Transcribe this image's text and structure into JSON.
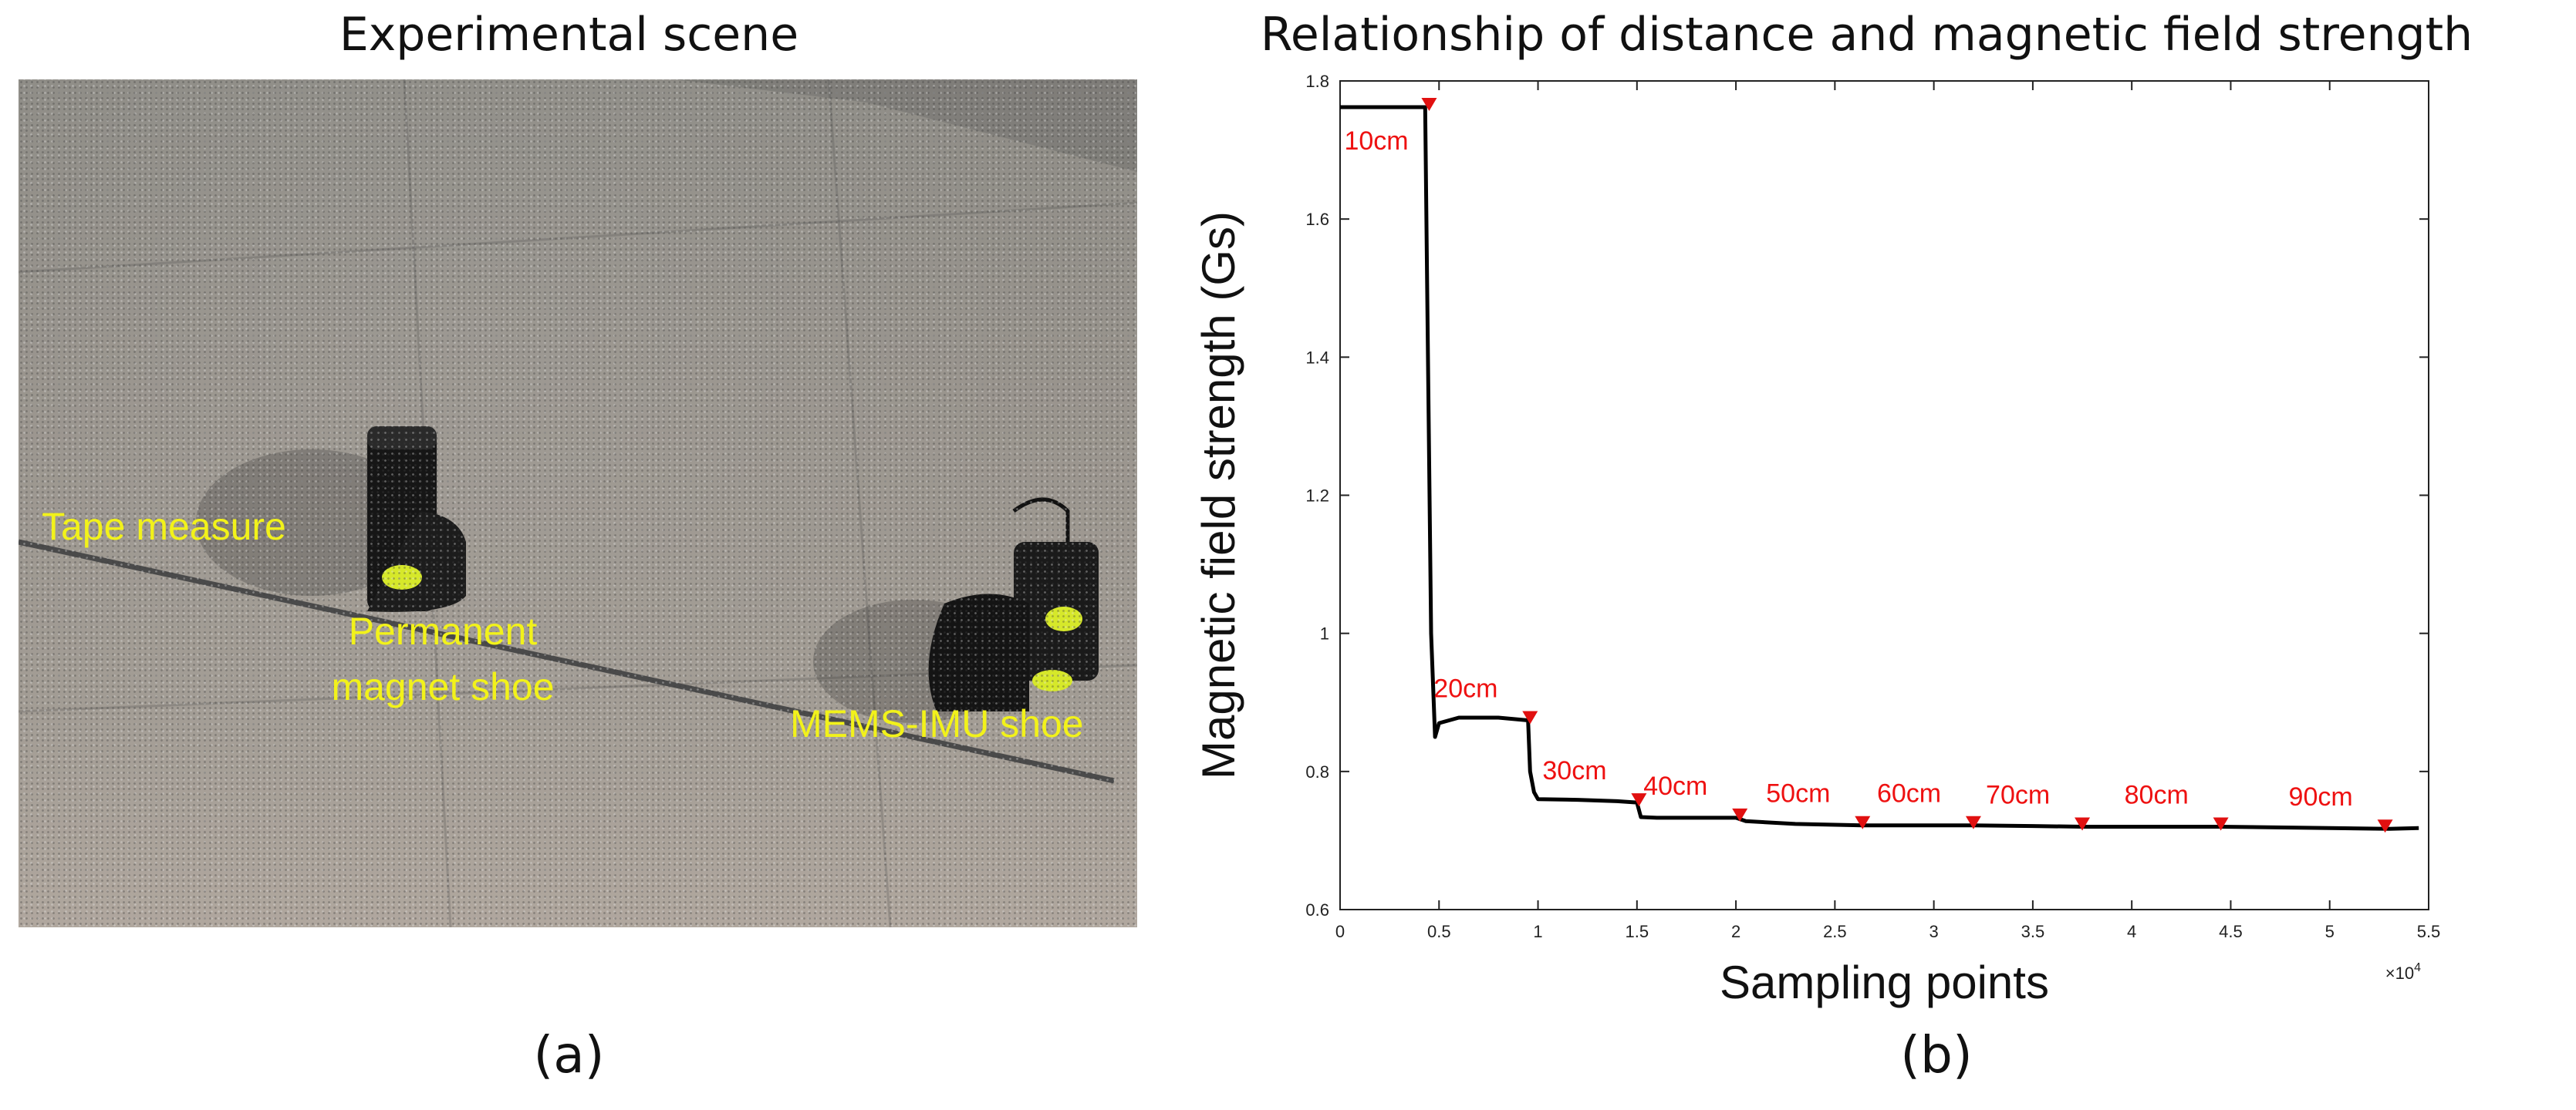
{
  "panel_a": {
    "title": "Experimental scene",
    "caption": "(a)",
    "labels": {
      "tape": "Tape measure",
      "magnet_line1": "Permanent",
      "magnet_line2": "magnet shoe",
      "imu": "MEMS-IMU shoe"
    }
  },
  "panel_b": {
    "title": "Relationship of distance  and magnetic field strength",
    "caption": "(b)"
  },
  "colors": {
    "line": "#000000",
    "marker": "#e11010",
    "annotation": "#e11010",
    "photo_label": "#f2f21a"
  },
  "chart_data": {
    "type": "line",
    "title": "Relationship of distance  and magnetic field strength",
    "xlabel": "Sampling points",
    "ylabel": "Magnetic field strength (Gs)",
    "x_multiplier_label": "×10^4",
    "xlim": [
      0,
      5.5
    ],
    "ylim": [
      0.6,
      1.8
    ],
    "x_ticks": [
      "0",
      "0.5",
      "1",
      "1.5",
      "2",
      "2.5",
      "3",
      "3.5",
      "4",
      "4.5",
      "5",
      "5.5"
    ],
    "y_ticks": [
      "0.6",
      "0.8",
      "1",
      "1.2",
      "1.4",
      "1.6",
      "1.8"
    ],
    "grid": false,
    "series": [
      {
        "x": [
          0,
          0.43,
          0.44,
          0.46,
          0.48,
          0.5,
          0.6,
          0.8,
          0.95,
          0.96,
          0.98,
          1.0,
          1.2,
          1.4,
          1.5,
          1.52,
          1.6,
          1.8,
          2.0,
          2.05,
          2.3,
          2.64,
          3.0,
          3.2,
          3.5,
          3.75,
          4.0,
          4.45,
          5.0,
          5.3,
          5.45
        ],
        "y": [
          1.762,
          1.762,
          1.5,
          1.0,
          0.85,
          0.87,
          0.878,
          0.878,
          0.874,
          0.8,
          0.77,
          0.76,
          0.759,
          0.757,
          0.755,
          0.734,
          0.733,
          0.733,
          0.733,
          0.728,
          0.724,
          0.722,
          0.722,
          0.722,
          0.721,
          0.72,
          0.72,
          0.72,
          0.718,
          0.717,
          0.718
        ]
      }
    ],
    "markers": [
      {
        "label": "10cm",
        "x": 0.45,
        "y": 1.762
      },
      {
        "label": "20cm",
        "x": 0.96,
        "y": 0.874
      },
      {
        "label": "30cm",
        "x": 1.51,
        "y": 0.755
      },
      {
        "label": "40cm",
        "x": 2.02,
        "y": 0.733
      },
      {
        "label": "50cm",
        "x": 2.64,
        "y": 0.722
      },
      {
        "label": "60cm",
        "x": 3.2,
        "y": 0.722
      },
      {
        "label": "70cm",
        "x": 3.75,
        "y": 0.72
      },
      {
        "label": "80cm",
        "x": 4.45,
        "y": 0.72
      },
      {
        "label": "90cm",
        "x": 5.28,
        "y": 0.717
      }
    ]
  }
}
